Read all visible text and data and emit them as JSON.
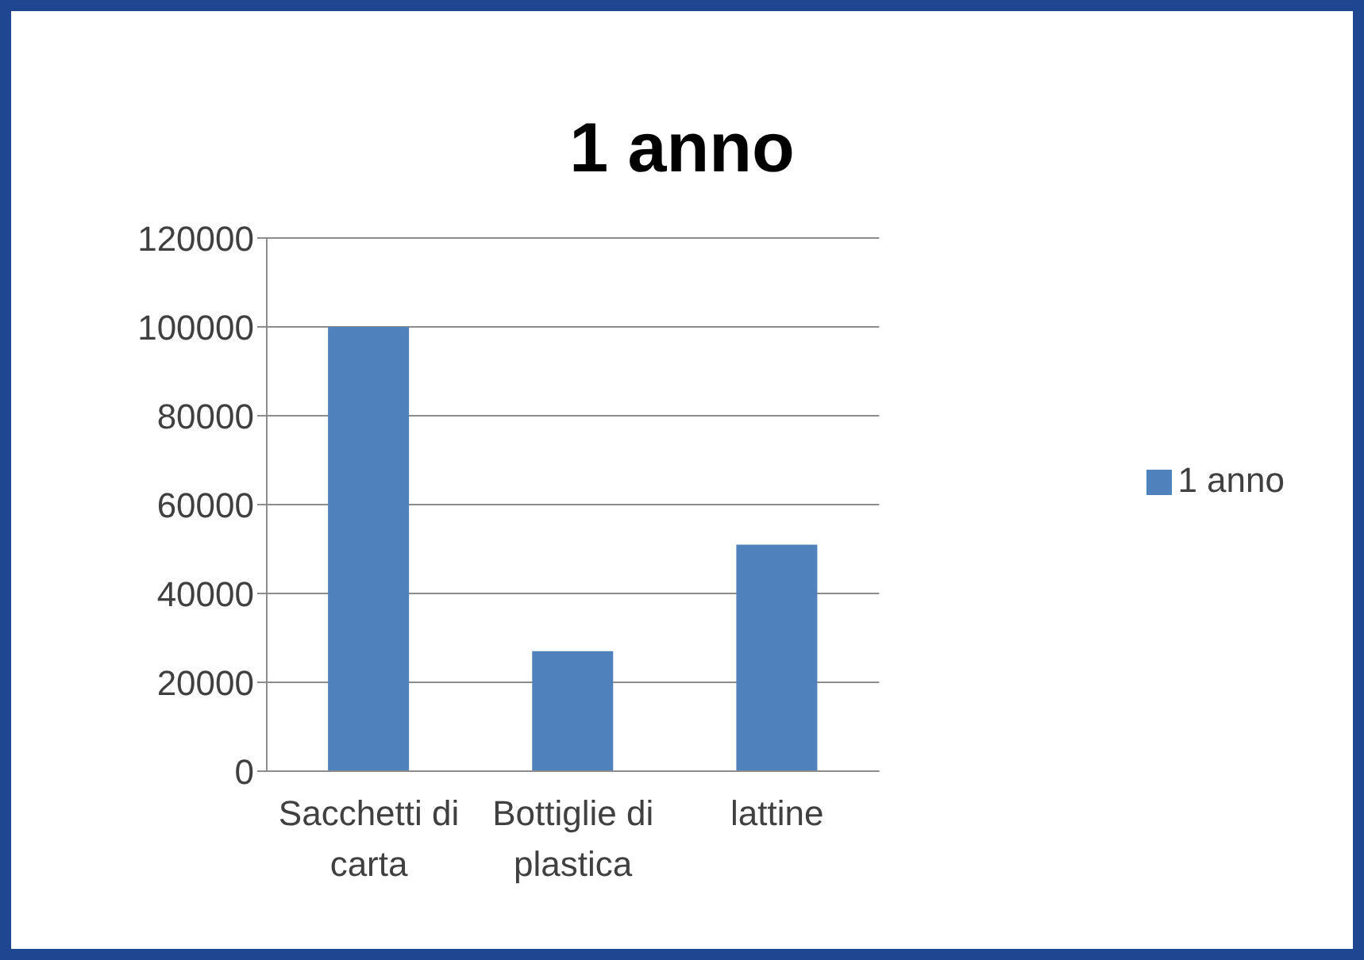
{
  "chart_data": {
    "type": "bar",
    "title": "1 anno",
    "categories": [
      "Sacchetti di carta",
      "Bottiglie di plastica",
      "lattine"
    ],
    "series": [
      {
        "name": "1 anno",
        "color": "#4f81bd",
        "values": [
          100000,
          27000,
          51000
        ]
      }
    ],
    "ylim": [
      0,
      120000
    ],
    "yticks": [
      0,
      20000,
      40000,
      60000,
      80000,
      100000,
      120000
    ],
    "grid": "y",
    "legend": "right"
  }
}
